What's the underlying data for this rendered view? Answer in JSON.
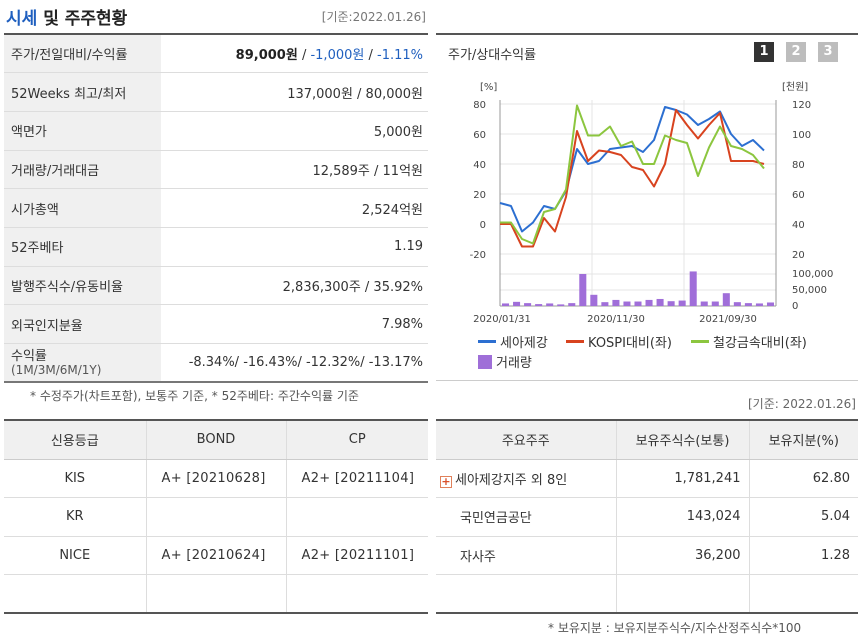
{
  "header": {
    "title_part1": "시세",
    "title_part2": " 및 주주현황",
    "base_date": "[기준:2022.01.26]"
  },
  "price_table": {
    "rows": [
      {
        "label": "주가/전일대비/수익률",
        "price": "89,000원",
        "sep1": " / ",
        "change": "-1,000원",
        "sep2": " / ",
        "rate": "-1.11%"
      },
      {
        "label": "52Weeks 최고/최저",
        "value": "137,000원 / 80,000원"
      },
      {
        "label": "액면가",
        "value": "5,000원"
      },
      {
        "label": "거래량/거래대금",
        "value": "12,589주 / 11억원"
      },
      {
        "label": "시가총액",
        "value": "2,524억원"
      },
      {
        "label": "52주베타",
        "value": "1.19"
      },
      {
        "label": "발행주식수/유동비율",
        "value": "2,836,300주 / 35.92%"
      },
      {
        "label": "외국인지분율",
        "value": "7.98%"
      },
      {
        "label": "수익률",
        "sublabel": "(1M/3M/6M/1Y)",
        "value": "-8.34%/ -16.43%/ -12.32%/ -13.17%"
      }
    ],
    "footnote": "* 수정주가(차트포함), 보통주 기준, * 52주베타: 주간수익률 기준"
  },
  "chart_panel": {
    "title": "주가/상대수익률",
    "period_buttons": [
      "1",
      "2",
      "3"
    ],
    "active_button": "1",
    "colors": {
      "stock": "#2c6fd1",
      "kospi": "#d8431f",
      "steel": "#8cc63f",
      "volume": "#a06ed9",
      "active_btn": "#333333",
      "inactive_btn": "#bdbdbd"
    }
  },
  "chart_data": {
    "type": "line",
    "y_unit_left": "[%]",
    "y_unit_right": "[천원]",
    "y_ticks_left": [
      "80",
      "60",
      "40",
      "20",
      "0",
      "-20"
    ],
    "y_ticks_right": [
      "120",
      "100",
      "80",
      "60",
      "40",
      "20"
    ],
    "vol_ticks": [
      "100,000",
      "50,000",
      "0"
    ],
    "x_ticks": [
      "2020/01/31",
      "2020/11/30",
      "2021/09/30"
    ],
    "ylim_left": [
      -20,
      80
    ],
    "series": [
      {
        "name": "세아제강",
        "values": [
          14,
          12,
          -5,
          1,
          12,
          10,
          22,
          50,
          40,
          42,
          50,
          51,
          52,
          48,
          56,
          78,
          76,
          73,
          66,
          70,
          75,
          60,
          52,
          56,
          49
        ]
      },
      {
        "name": "KOSPI대비(좌)",
        "values": [
          0,
          0,
          -15,
          -15,
          4,
          -5,
          18,
          62,
          42,
          49,
          48,
          46,
          38,
          36,
          25,
          40,
          76,
          66,
          57,
          66,
          74,
          42,
          42,
          42,
          40
        ]
      },
      {
        "name": "철강금속대비(좌)",
        "values": [
          1,
          1,
          -10,
          -13,
          8,
          10,
          23,
          79,
          59,
          59,
          65,
          52,
          55,
          40,
          40,
          59,
          56,
          54,
          32,
          51,
          65,
          52,
          50,
          46,
          37
        ]
      }
    ],
    "volume": {
      "name": "거래량",
      "values": [
        8,
        13,
        9,
        6,
        8,
        5,
        9,
        100,
        35,
        12,
        19,
        14,
        14,
        19,
        22,
        15,
        17,
        108,
        14,
        14,
        40,
        12,
        9,
        8,
        11
      ],
      "unit_max": 100000
    }
  },
  "credit_table": {
    "headers": [
      "신용등급",
      "BOND",
      "CP"
    ],
    "rows": [
      {
        "agency": "KIS",
        "bond": "A+  [20210628]",
        "cp": "A2+  [20211104]"
      },
      {
        "agency": "KR",
        "bond": "",
        "cp": ""
      },
      {
        "agency": "NICE",
        "bond": "A+  [20210624]",
        "cp": "A2+  [20211101]"
      },
      {
        "agency": "",
        "bond": "",
        "cp": ""
      }
    ]
  },
  "holder_table": {
    "base_date": "[기준: 2022.01.26]",
    "headers": [
      "주요주주",
      "보유주식수(보통)",
      "보유지분(%)"
    ],
    "rows": [
      {
        "name": "세아제강지주 외 8인",
        "shares": "1,781,241",
        "pct": "62.80",
        "expandable": true
      },
      {
        "name": "국민연금공단",
        "shares": "143,024",
        "pct": "5.04"
      },
      {
        "name": "자사주",
        "shares": "36,200",
        "pct": "1.28"
      },
      {
        "name": "",
        "shares": "",
        "pct": ""
      }
    ],
    "footnote": "* 보유지분 : 보유지분주식수/지수산정주식수*100"
  }
}
